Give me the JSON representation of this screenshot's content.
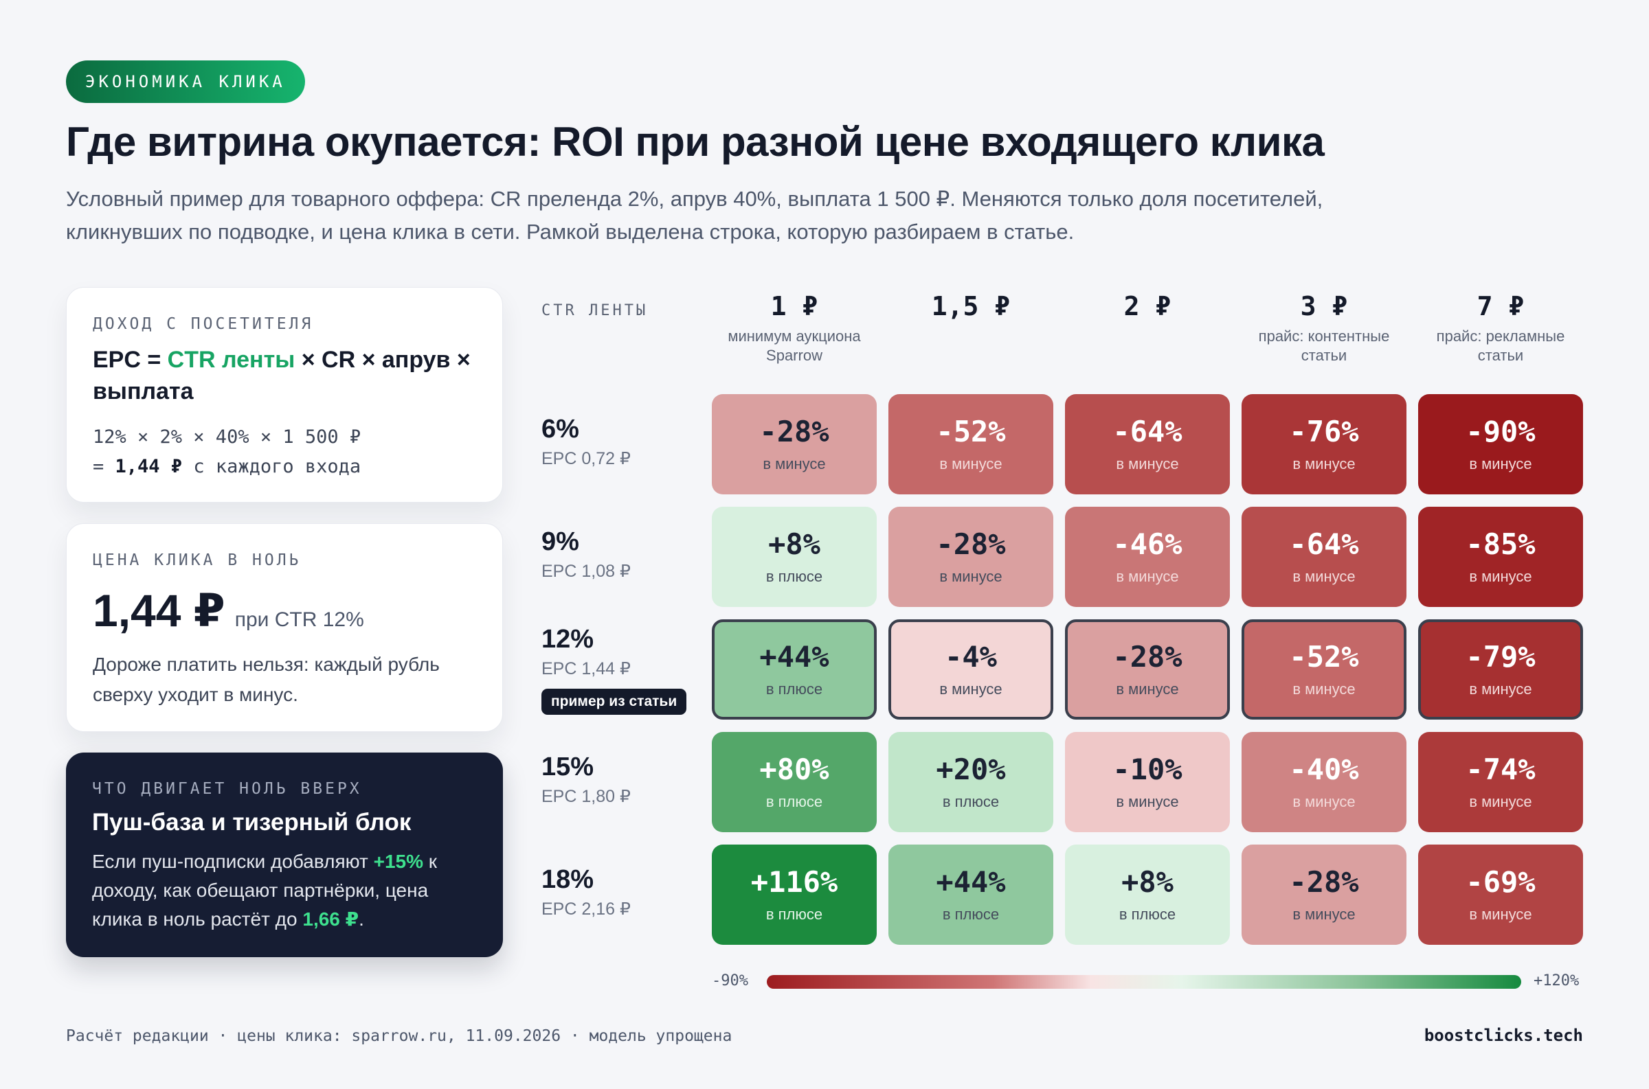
{
  "tag": "ЭКОНОМИКА КЛИКА",
  "title": "Где витрина окупается: ROI при разной цене входящего клика",
  "subtitle": "Условный пример для товарного оффера: CR преленда 2%, апрув 40%, выплата 1 500 ₽. Меняются только доля посетителей, кликнувших по подводке, и цена клика в сети. Рамкой выделена строка, которую разбираем в статье.",
  "cards": {
    "epc": {
      "label": "ДОХОД С ПОСЕТИТЕЛЯ",
      "formula_prefix": "EPC = ",
      "formula_highlight": "CTR ленты",
      "formula_suffix": " × CR × апрув × выплата",
      "calc_line1": "12% × 2% × 40% × 1 500 ₽",
      "calc_line2_prefix": "= ",
      "calc_line2_bold": "1,44 ₽",
      "calc_line2_suffix": " с каждого входа"
    },
    "breakeven": {
      "label": "ЦЕНА КЛИКА В НОЛЬ",
      "value": "1,44 ₽",
      "value_sub": "при CTR 12%",
      "note": "Дороже платить нельзя: каждый рубль сверху уходит в минус."
    },
    "driver": {
      "label": "ЧТО ДВИГАЕТ НОЛЬ ВВЕРХ",
      "heading": "Пуш-база и тизерный блок",
      "text_1": "Если пуш-подписки добавляют ",
      "accent_1": "+15%",
      "text_2": " к доходу, как обещают партнёрки, цена клика в ноль растёт до ",
      "accent_2": "1,66 ₽",
      "text_3": "."
    }
  },
  "chart_data": {
    "type": "heatmap",
    "row_axis_label": "CTR ЛЕНТЫ",
    "columns": [
      {
        "price": "1 ₽",
        "note": "минимум аукциона Sparrow"
      },
      {
        "price": "1,5 ₽",
        "note": ""
      },
      {
        "price": "2 ₽",
        "note": ""
      },
      {
        "price": "3 ₽",
        "note": "прайс: контентные статьи"
      },
      {
        "price": "7 ₽",
        "note": "прайс: рекламные статьи"
      }
    ],
    "rows": [
      {
        "ctr": "6%",
        "epc": "EPC 0,72 ₽",
        "badge": "",
        "values": [
          -28,
          -52,
          -64,
          -76,
          -90
        ]
      },
      {
        "ctr": "9%",
        "epc": "EPC 1,08 ₽",
        "badge": "",
        "values": [
          8,
          -28,
          -46,
          -64,
          -85
        ]
      },
      {
        "ctr": "12%",
        "epc": "EPC 1,44 ₽",
        "badge": "пример из статьи",
        "values": [
          44,
          -4,
          -28,
          -52,
          -79
        ]
      },
      {
        "ctr": "15%",
        "epc": "EPC 1,80 ₽",
        "badge": "",
        "values": [
          80,
          20,
          -10,
          -40,
          -74
        ]
      },
      {
        "ctr": "18%",
        "epc": "EPC 2,16 ₽",
        "badge": "",
        "values": [
          116,
          44,
          8,
          -28,
          -69
        ]
      }
    ],
    "highlight_row": 2,
    "positive_label": "в плюсе",
    "negative_label": "в минусе",
    "scale_min": -90,
    "scale_max": 120,
    "scale_min_label": "-90%",
    "scale_max_label": "+120%"
  },
  "footer": {
    "left": "Расчёт редакции · цены клика: sparrow.ru, 11.09.2026 · модель упрощена",
    "right": "boostclicks.tech"
  }
}
